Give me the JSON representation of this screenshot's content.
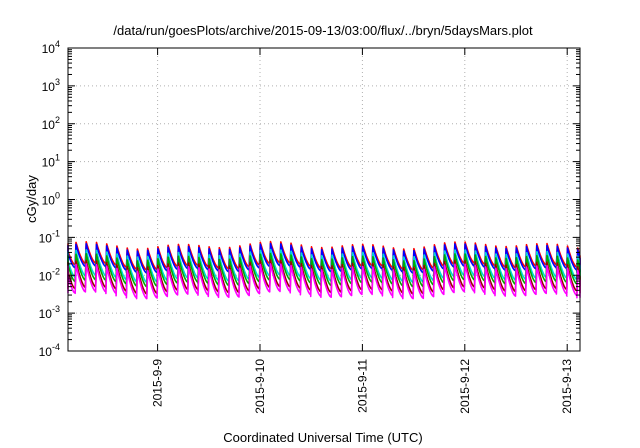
{
  "chart_data": {
    "type": "line",
    "title": "/data/run/goesPlots/archive/2015-09-13/03:00/flux/../bryn/5daysMars.plot",
    "xlabel": "Coordinated Universal Time (UTC)",
    "ylabel": "cGy/day",
    "yscale": "log",
    "ylim": [
      0.0001,
      10000
    ],
    "xlim": [
      "2015-09-08 03:00",
      "2015-09-13 03:00"
    ],
    "grid": true,
    "y_ticks": [
      {
        "base": "10",
        "exp": "-4",
        "value": 0.0001
      },
      {
        "base": "10",
        "exp": "-3",
        "value": 0.001
      },
      {
        "base": "10",
        "exp": "-2",
        "value": 0.01
      },
      {
        "base": "10",
        "exp": "-1",
        "value": 0.1
      },
      {
        "base": "10",
        "exp": "0",
        "value": 1
      },
      {
        "base": "10",
        "exp": "1",
        "value": 10
      },
      {
        "base": "10",
        "exp": "2",
        "value": 100
      },
      {
        "base": "10",
        "exp": "3",
        "value": 1000
      },
      {
        "base": "10",
        "exp": "4",
        "value": 10000
      }
    ],
    "x_ticks": [
      {
        "label": "2015-9-9",
        "value": "2015-09-09 00:00"
      },
      {
        "label": "2015-9-10",
        "value": "2015-09-10 00:00"
      },
      {
        "label": "2015-9-11",
        "value": "2015-09-11 00:00"
      },
      {
        "label": "2015-9-12",
        "value": "2015-09-12 00:00"
      },
      {
        "label": "2015-9-13",
        "value": "2015-09-13 00:00"
      }
    ],
    "series": [
      {
        "color": "#ff0000",
        "cycles_per_day": 10,
        "peak": 0.062,
        "trough": 0.018
      },
      {
        "color": "#0000ff",
        "cycles_per_day": 10,
        "peak": 0.055,
        "trough": 0.015
      },
      {
        "color": "#00d8d8",
        "cycles_per_day": 10,
        "peak": 0.038,
        "trough": 0.0085
      },
      {
        "color": "#00aa00",
        "cycles_per_day": 10,
        "peak": 0.03,
        "trough": 0.0065
      },
      {
        "color": "#990000",
        "cycles_per_day": 10,
        "peak": 0.02,
        "trough": 0.0042
      },
      {
        "color": "#ff00ff",
        "cycles_per_day": 10,
        "peak": 0.016,
        "trough": 0.0032
      }
    ]
  }
}
